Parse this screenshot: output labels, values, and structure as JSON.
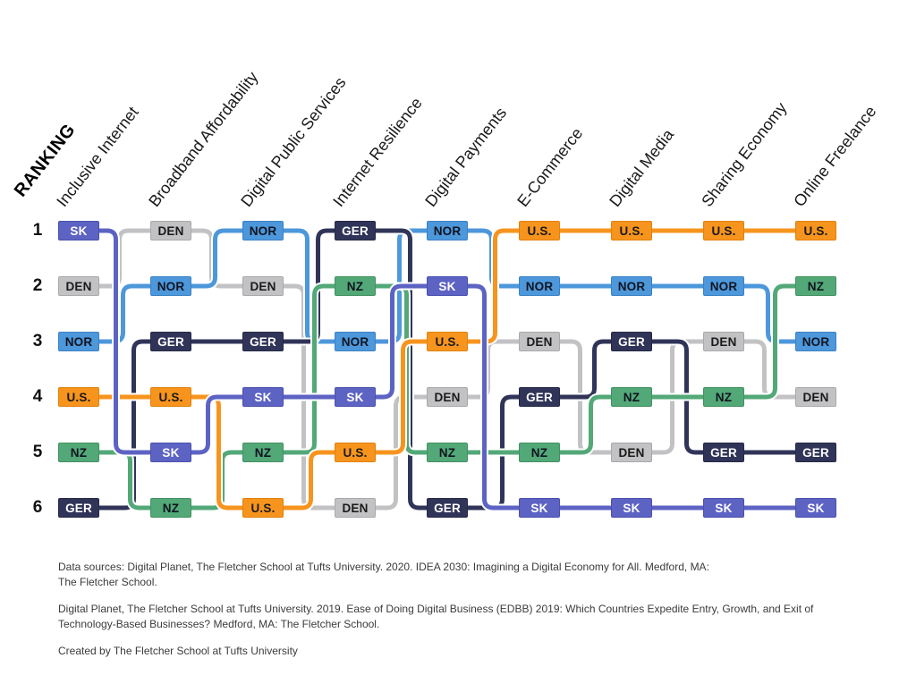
{
  "ranking_label": "RANKING",
  "chart_data": {
    "type": "bump",
    "rank_labels": [
      "1",
      "2",
      "3",
      "4",
      "5",
      "6"
    ],
    "countries": {
      "SK": {
        "label": "SK",
        "fill": "#5D63C3",
        "border": "#4B51AE",
        "text_color": "#FFFFFF"
      },
      "DEN": {
        "label": "DEN",
        "fill": "#C2C2C4",
        "border": "#A9A9AC",
        "text_color": "#1A1A1A"
      },
      "NOR": {
        "label": "NOR",
        "fill": "#4D97DB",
        "border": "#3B82C6",
        "text_color": "#10141F"
      },
      "US": {
        "label": "U.S.",
        "fill": "#F7941E",
        "border": "#E0820D",
        "text_color": "#1A1A1A"
      },
      "NZ": {
        "label": "NZ",
        "fill": "#53A878",
        "border": "#439161",
        "text_color": "#10141F"
      },
      "GER": {
        "label": "GER",
        "fill": "#303458",
        "border": "#262A46",
        "text_color": "#FFFFFF"
      }
    },
    "columns": [
      {
        "label": "Inclusive Internet",
        "ranking": [
          "SK",
          "DEN",
          "NOR",
          "US",
          "NZ",
          "GER"
        ]
      },
      {
        "label": "Broadband Affordability",
        "ranking": [
          "DEN",
          "NOR",
          "GER",
          "US",
          "SK",
          "NZ"
        ]
      },
      {
        "label": "Digital Public Services",
        "ranking": [
          "NOR",
          "DEN",
          "GER",
          "SK",
          "NZ",
          "US"
        ]
      },
      {
        "label": "Internet Resilience",
        "ranking": [
          "GER",
          "NZ",
          "NOR",
          "SK",
          "US",
          "DEN"
        ]
      },
      {
        "label": "Digital Payments",
        "ranking": [
          "NOR",
          "SK",
          "US",
          "DEN",
          "NZ",
          "GER"
        ]
      },
      {
        "label": "E-Commerce",
        "ranking": [
          "US",
          "NOR",
          "DEN",
          "GER",
          "NZ",
          "SK"
        ]
      },
      {
        "label": "Digital Media",
        "ranking": [
          "US",
          "NOR",
          "GER",
          "NZ",
          "DEN",
          "SK"
        ]
      },
      {
        "label": "Sharing Economy",
        "ranking": [
          "US",
          "NOR",
          "DEN",
          "NZ",
          "GER",
          "SK"
        ]
      },
      {
        "label": "Online Freelance",
        "ranking": [
          "US",
          "NZ",
          "NOR",
          "DEN",
          "GER",
          "SK"
        ]
      }
    ]
  },
  "footer": {
    "para1": "Data sources: Digital Planet, The Fletcher School at Tufts University. 2020. IDEA 2030: Imagining a Digital Economy for All. Medford, MA:\nThe Fletcher School.",
    "para2": "Digital Planet, The Fletcher School at Tufts University. 2019. Ease of Doing Digital Business (EDBB) 2019: Which Countries Expedite Entry, Growth, and Exit of\nTechnology-Based Businesses? Medford, MA: The Fletcher School.",
    "para3": "Created by The Fletcher School at Tufts University"
  }
}
